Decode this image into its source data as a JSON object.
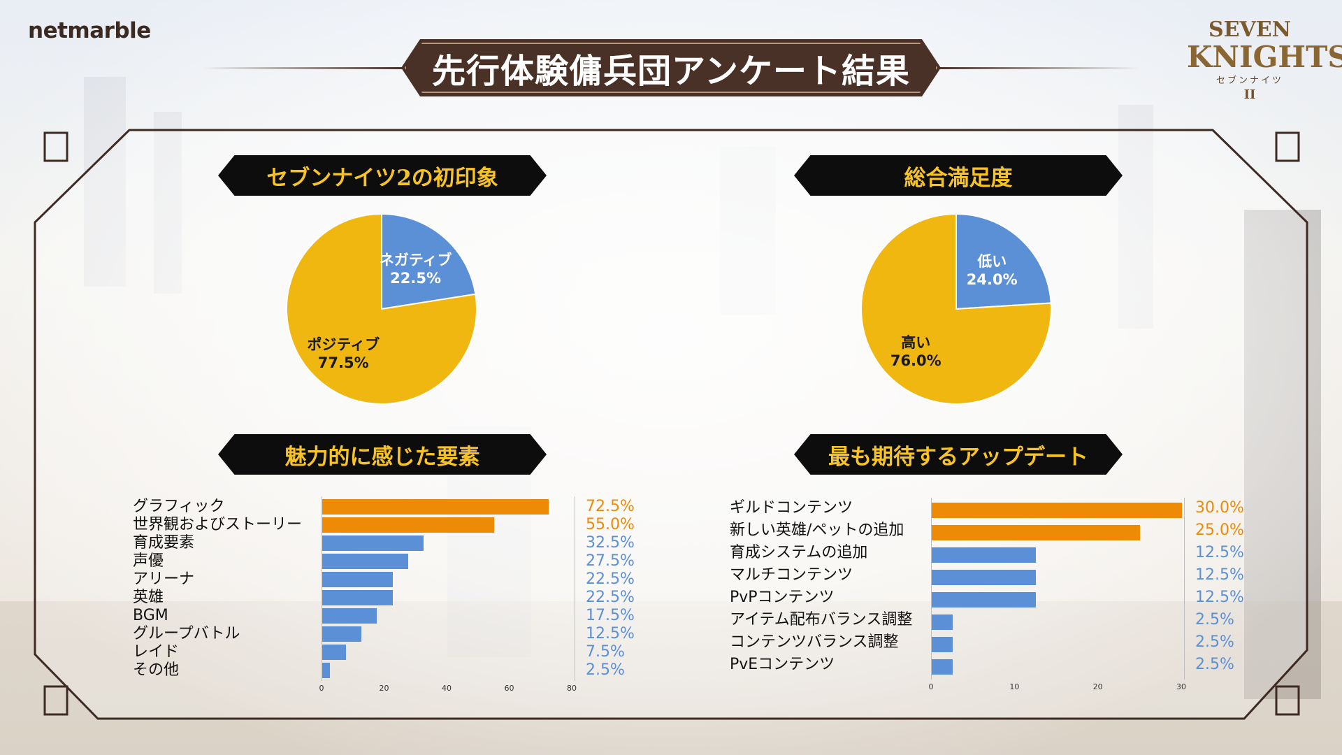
{
  "brand": {
    "publisher_logo": "netmarble",
    "game_logo": {
      "line1": "SEVEN",
      "line2": "KNIGHTS",
      "line3": "セブンナイツ",
      "line4": "II"
    }
  },
  "title": "先行体験傭兵団アンケート結果",
  "colors": {
    "blue": "#5b8fd6",
    "gold": "#f0b710",
    "orange": "#ed8b07",
    "title_banner": "#4a3127",
    "section_banner": "#0d0d0d",
    "section_text": "#f7c325"
  },
  "sections": {
    "first_impression": "セブンナイツ2の初印象",
    "satisfaction": "総合満足度",
    "attractive": "魅力的に感じた要素",
    "expected": "最も期待するアップデート"
  },
  "chart_data": [
    {
      "type": "pie",
      "title": "セブンナイツ2の初印象",
      "slices": [
        {
          "name": "ネガティブ",
          "value": 22.5,
          "label": "22.5%",
          "color": "#5b8fd6"
        },
        {
          "name": "ポジティブ",
          "value": 77.5,
          "label": "77.5%",
          "color": "#f0b710"
        }
      ]
    },
    {
      "type": "pie",
      "title": "総合満足度",
      "slices": [
        {
          "name": "低い",
          "value": 24.0,
          "label": "24.0%",
          "color": "#5b8fd6"
        },
        {
          "name": "高い",
          "value": 76.0,
          "label": "76.0%",
          "color": "#f0b710"
        }
      ]
    },
    {
      "type": "bar",
      "orientation": "horizontal",
      "title": "魅力的に感じた要素",
      "categories": [
        "グラフィック",
        "世界観およびストーリー",
        "育成要素",
        "声優",
        "アリーナ",
        "英雄",
        "BGM",
        "グループバトル",
        "レイド",
        "その他"
      ],
      "values": [
        72.5,
        55.0,
        32.5,
        27.5,
        22.5,
        22.5,
        17.5,
        12.5,
        7.5,
        2.5
      ],
      "value_labels": [
        "72.5%",
        "55.0%",
        "32.5%",
        "27.5%",
        "22.5%",
        "22.5%",
        "17.5%",
        "12.5%",
        "7.5%",
        "2.5%"
      ],
      "highlight_count": 2,
      "xlim": [
        0,
        80
      ],
      "xticks": [
        "0",
        "20",
        "40",
        "60",
        "80"
      ]
    },
    {
      "type": "bar",
      "orientation": "horizontal",
      "title": "最も期待するアップデート",
      "categories": [
        "ギルドコンテンツ",
        "新しい英雄/ペットの追加",
        "育成システムの追加",
        "マルチコンテンツ",
        "PvPコンテンツ",
        "アイテム配布バランス調整",
        "コンテンツバランス調整",
        "PvEコンテンツ"
      ],
      "values": [
        30.0,
        25.0,
        12.5,
        12.5,
        12.5,
        2.5,
        2.5,
        2.5
      ],
      "value_labels": [
        "30.0%",
        "25.0%",
        "12.5%",
        "12.5%",
        "12.5%",
        "2.5%",
        "2.5%",
        "2.5%"
      ],
      "highlight_count": 2,
      "xlim": [
        0,
        30
      ],
      "xticks": [
        "0",
        "10",
        "20",
        "30"
      ]
    }
  ]
}
